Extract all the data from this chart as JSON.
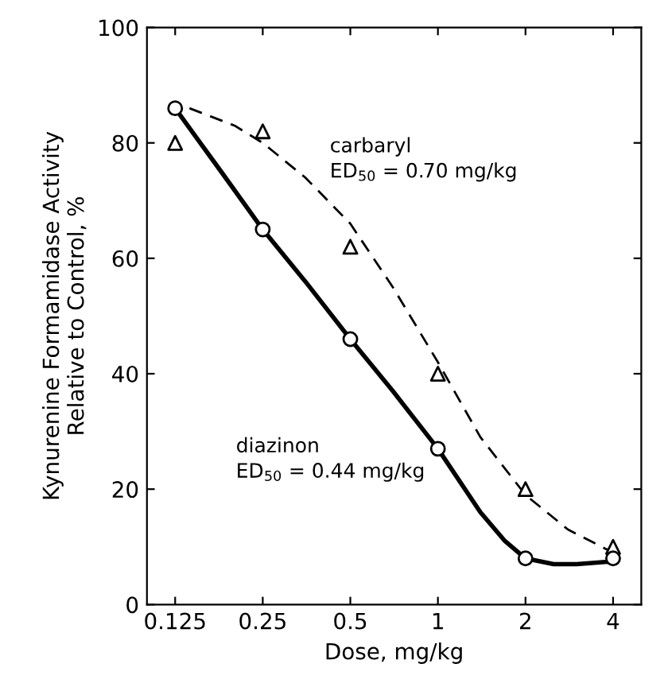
{
  "chart_data": {
    "type": "line",
    "xlabel": "Dose, mg/kg",
    "ylabel": "Kynurenine Formamidase Activity\nRelative to Control, %",
    "log": "x",
    "xlim": [
      0.1,
      5
    ],
    "ylim": [
      0,
      100
    ],
    "xticks": [
      {
        "value": 0.125,
        "label": "0.125"
      },
      {
        "value": 0.25,
        "label": "0.25"
      },
      0.5,
      1,
      2,
      4
    ],
    "yticks": [
      0,
      20,
      40,
      60,
      80,
      100
    ],
    "grid": false,
    "legend": false,
    "series": [
      {
        "type": "scatter",
        "color": "#000000",
        "marker": "triangle",
        "x": [
          0.125,
          0.25,
          0.5,
          1,
          2,
          4
        ],
        "values": [
          80,
          82,
          62,
          40,
          20,
          10
        ]
      },
      {
        "color": "#000000",
        "line_style": "dashed",
        "marker": "none",
        "x": [
          0.14,
          0.2,
          0.25,
          0.35,
          0.5,
          0.7,
          1,
          1.4,
          2,
          2.8,
          4
        ],
        "values": [
          86,
          83,
          80,
          74,
          66,
          55,
          42,
          29,
          19,
          13,
          9
        ]
      },
      {
        "type": "scatter",
        "color": "#000000",
        "marker": "circle",
        "x": [
          0.125,
          0.25,
          0.5,
          1,
          2,
          4
        ],
        "values": [
          86,
          65,
          46,
          27,
          8,
          8
        ]
      },
      {
        "color": "#000000",
        "line_style": "solid",
        "marker": "none",
        "x": [
          0.125,
          0.18,
          0.25,
          0.35,
          0.5,
          0.7,
          1,
          1.4,
          1.7,
          2,
          2.5,
          3,
          4
        ],
        "values": [
          86,
          75,
          65,
          56,
          46,
          37,
          27,
          16,
          11,
          8,
          7,
          7,
          7.5
        ]
      }
    ],
    "annotations": [
      "carbaryl\nED$_{50}$ = 0.70 mg/kg",
      "diazinon\nED$_{50}$ = 0.44 mg/kg"
    ]
  }
}
